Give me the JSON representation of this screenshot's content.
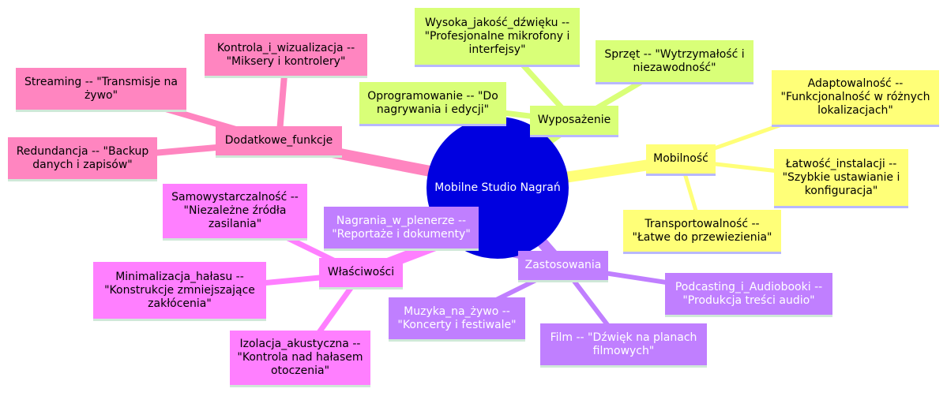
{
  "root": {
    "label": "Mobilne Studio Nagrań"
  },
  "colors": {
    "root": "#0000e0",
    "mobilnosc": "#ffff78",
    "wyposazenie": "#d9ff78",
    "zastosowania": "#c07fff",
    "wlasciwosci": "#ff7fff",
    "dodatkowe": "#ff85c0"
  },
  "branches": {
    "mobilnosc": {
      "label": "Mobilność",
      "children": [
        "Adaptowalność --\n\"Funkcjonalność w różnych\nlokalizacjach\"",
        "Łatwość_instalacji --\n\"Szybkie ustawianie i\nkonfiguracja\"",
        "Transportowalność --\n\"Łatwe do przewiezienia\""
      ]
    },
    "wyposazenie": {
      "label": "Wyposażenie",
      "children": [
        "Wysoka_jakość_dźwięku --\n\"Profesjonalne mikrofony i\ninterfejsy\"",
        "Sprzęt -- \"Wytrzymałość i\nniezawodność\"",
        "Oprogramowanie -- \"Do\nnagrywania i edycji\""
      ]
    },
    "zastosowania": {
      "label": "Zastosowania",
      "children": [
        "Nagrania_w_plenerze --\n\"Reportaże i dokumenty\"",
        "Podcasting_i_Audiobooki --\n\"Produkcja treści audio\"",
        "Muzyka_na_żywo --\n\"Koncerty i festiwale\"",
        "Film -- \"Dźwięk na planach\nfilmowych\""
      ]
    },
    "wlasciwosci": {
      "label": "Właściwości",
      "children": [
        "Samowystarczalność --\n\"Niezależne źródła\nzasilania\"",
        "Minimalizacja_hałasu --\n\"Konstrukcje zmniejszające\nzakłócenia\"",
        "Izolacja_akustyczna --\n\"Kontrola nad hałasem\notoczenia\""
      ]
    },
    "dodatkowe": {
      "label": "Dodatkowe_funkcje",
      "children": [
        "Kontrola_i_wizualizacja --\n\"Miksery i kontrolery\"",
        "Streaming -- \"Transmisje na\nżywo\"",
        "Redundancja -- \"Backup\ndanych i zapisów\""
      ]
    }
  }
}
